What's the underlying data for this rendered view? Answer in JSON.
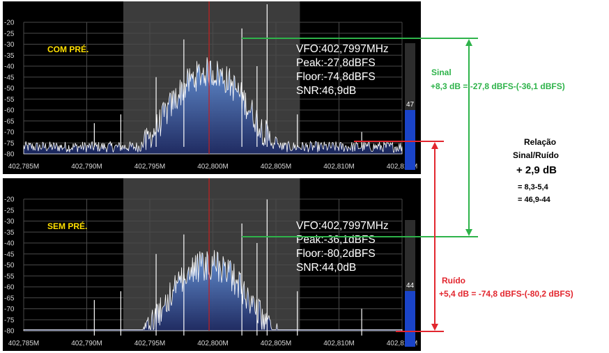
{
  "panels": [
    {
      "id": "top",
      "label": "COM PRÉ.",
      "vfo": "VFO:402,7997MHz",
      "peak": "Peak:-27,8dBFS",
      "floor": "Floor:-74,8dBFS",
      "snr": "SNR:46,9dB",
      "meter_value": "47",
      "meter_level": 0.47,
      "peak_dbfs": -27.8,
      "floor_dbfs": -74.8
    },
    {
      "id": "bottom",
      "label": "SEM PRÉ.",
      "vfo": "VFO:402,7997MHz",
      "peak": "Peak:-36,1dBFS",
      "floor": "Floor:-80,2dBFS",
      "snr": "SNR:44,0dB",
      "meter_value": "44",
      "meter_level": 0.44,
      "peak_dbfs": -36.1,
      "floor_dbfs": -80.2
    }
  ],
  "y_ticks": [
    "-20",
    "-25",
    "-30",
    "-35",
    "-40",
    "-45",
    "-50",
    "-55",
    "-60",
    "-65",
    "-70",
    "-75",
    "-80"
  ],
  "y_range_dbfs": [
    -80,
    -20
  ],
  "x_ticks": [
    "402,785M",
    "402,790M",
    "402,795M",
    "402,800M",
    "402,805M",
    "402,810M",
    "402,815M"
  ],
  "x_range_mhz": [
    402.785,
    402.815
  ],
  "passband_mhz": [
    402.7929,
    402.8069
  ],
  "vfo_mhz": 402.7997,
  "annotations": {
    "sinal_title": "Sinal",
    "sinal_value": "+8,3 dB  = -27,8 dBFS-(-36,1 dBFS)",
    "relacao_line1": "Relação",
    "relacao_line2": "Sinal/Ruído",
    "relacao_value": "+ 2,9 dB",
    "relacao_calc1": "= 8,3-5,4",
    "relacao_calc2": "= 46,9-44",
    "ruido_title": "Ruído",
    "ruido_value": "+5,4 dB  = -74,8 dBFS-(-80,2 dBFS)"
  },
  "colors": {
    "green": "#2eb34a",
    "red": "#e2262e",
    "label_yellow": "#ffe000",
    "meter_blue": "#1a44c8",
    "vfo_line": "#c81e1e",
    "passband": "#3c3c3c"
  }
}
